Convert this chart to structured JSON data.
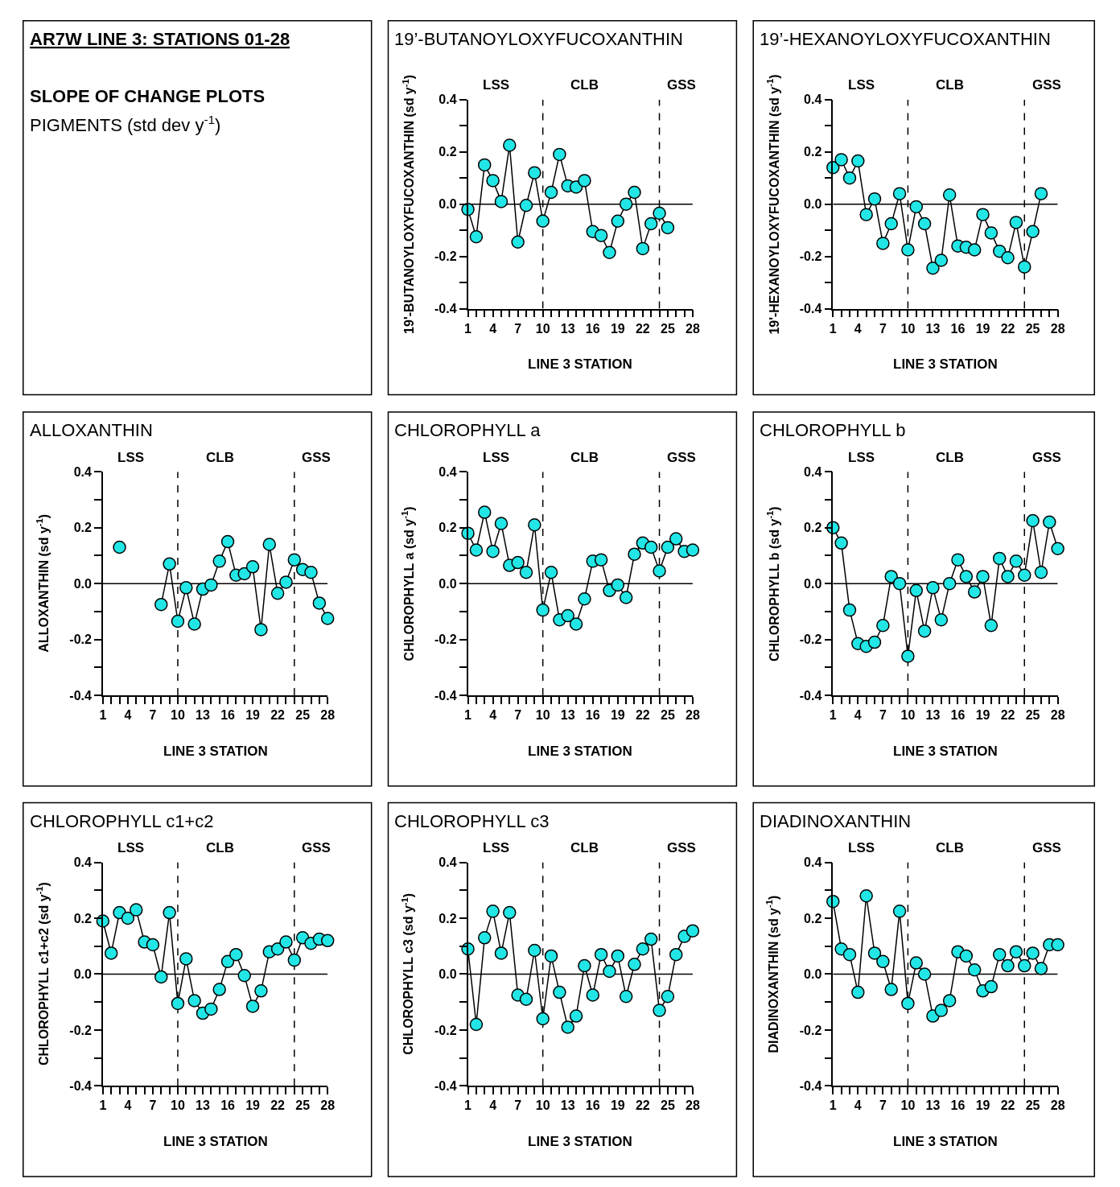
{
  "chart_data": [
    {
      "type": "other",
      "title": "AR7W LINE 3: STATIONS 01-28",
      "subtitle": "SLOPE OF CHANGE PLOTS",
      "annotations": [
        "PIGMENTS (std dev y$^{-1}$)"
      ]
    },
    {
      "type": "line",
      "title": "19’-BUTANOYLOXYFUCOXANTHIN",
      "xlabel": "LINE 3 STATION",
      "ylabel": "19'-BUTANOYLOXYFUCOXANTHIN (sd y$^{-1}$)",
      "marker": "circle",
      "line_style": "solid",
      "grid": false,
      "color": "#22e6e6",
      "x": [
        1,
        2,
        3,
        4,
        5,
        6,
        7,
        8,
        9,
        10,
        11,
        12,
        13,
        14,
        15,
        16,
        17,
        18,
        19,
        20,
        21,
        22,
        23,
        24,
        25
      ],
      "values": [
        -0.02,
        -0.125,
        0.15,
        0.09,
        0.01,
        0.225,
        -0.145,
        -0.005,
        0.12,
        -0.065,
        0.045,
        0.19,
        0.07,
        0.065,
        0.09,
        -0.105,
        -0.12,
        -0.185,
        -0.065,
        0.0,
        0.045,
        -0.17,
        -0.075,
        -0.035,
        -0.09
      ],
      "xlim": [
        1,
        28
      ],
      "ylim": [
        -0.4,
        0.4
      ],
      "xticks": [
        1,
        {
          "value": 2,
          "label": null
        },
        {
          "value": 3,
          "label": null
        },
        4,
        {
          "value": 5,
          "label": null
        },
        {
          "value": 6,
          "label": null
        },
        7,
        {
          "value": 8,
          "label": null
        },
        {
          "value": 9,
          "label": null
        },
        10,
        {
          "value": 11,
          "label": null
        },
        {
          "value": 12,
          "label": null
        },
        13,
        {
          "value": 14,
          "label": null
        },
        {
          "value": 15,
          "label": null
        },
        16,
        {
          "value": 17,
          "label": null
        },
        {
          "value": 18,
          "label": null
        },
        19,
        {
          "value": 20,
          "label": null
        },
        {
          "value": 21,
          "label": null
        },
        22,
        {
          "value": 23,
          "label": null
        },
        {
          "value": 24,
          "label": null
        },
        25,
        {
          "value": 26,
          "label": null
        },
        {
          "value": 27,
          "label": null
        },
        28
      ],
      "yticks": [
        -0.4,
        {
          "value": -0.3,
          "label": null
        },
        -0.2,
        {
          "value": -0.1,
          "label": null
        },
        {
          "value": 0,
          "label": "0.0"
        },
        {
          "value": 0.1,
          "label": null
        },
        0.2,
        {
          "value": 0.3,
          "label": null
        },
        0.4
      ],
      "ref_lines": [
        {
          "axis": "y",
          "value": 0,
          "line_style": "solid"
        },
        {
          "axis": "x",
          "value": 10,
          "line_style": "dashed"
        },
        {
          "axis": "x",
          "value": 24,
          "line_style": "dashed"
        }
      ],
      "annotations": [
        "LSS",
        "CLB",
        "GSS"
      ]
    },
    {
      "type": "line",
      "title": "19’-HEXANOYLOXYFUCOXANTHIN",
      "xlabel": "LINE 3 STATION",
      "ylabel": "19'-HEXANOYLOXYFUCOXANTHIN (sd y$^{-1}$)",
      "marker": "circle",
      "line_style": "solid",
      "grid": false,
      "color": "#22e6e6",
      "x": [
        1,
        2,
        3,
        4,
        5,
        6,
        7,
        8,
        9,
        10,
        11,
        12,
        13,
        14,
        15,
        16,
        17,
        18,
        19,
        20,
        21,
        22,
        23,
        24,
        25,
        26
      ],
      "values": [
        0.14,
        0.17,
        0.1,
        0.165,
        -0.04,
        0.02,
        -0.15,
        -0.075,
        0.04,
        -0.175,
        -0.01,
        -0.075,
        -0.245,
        -0.215,
        0.035,
        -0.16,
        -0.165,
        -0.175,
        -0.04,
        -0.11,
        -0.18,
        -0.205,
        -0.07,
        -0.24,
        -0.105,
        0.04
      ],
      "xlim": [
        1,
        28
      ],
      "ylim": [
        -0.4,
        0.4
      ],
      "xticks": [
        1,
        {
          "value": 2,
          "label": null
        },
        {
          "value": 3,
          "label": null
        },
        4,
        {
          "value": 5,
          "label": null
        },
        {
          "value": 6,
          "label": null
        },
        7,
        {
          "value": 8,
          "label": null
        },
        {
          "value": 9,
          "label": null
        },
        10,
        {
          "value": 11,
          "label": null
        },
        {
          "value": 12,
          "label": null
        },
        13,
        {
          "value": 14,
          "label": null
        },
        {
          "value": 15,
          "label": null
        },
        16,
        {
          "value": 17,
          "label": null
        },
        {
          "value": 18,
          "label": null
        },
        19,
        {
          "value": 20,
          "label": null
        },
        {
          "value": 21,
          "label": null
        },
        22,
        {
          "value": 23,
          "label": null
        },
        {
          "value": 24,
          "label": null
        },
        25,
        {
          "value": 26,
          "label": null
        },
        {
          "value": 27,
          "label": null
        },
        28
      ],
      "yticks": [
        -0.4,
        {
          "value": -0.3,
          "label": null
        },
        -0.2,
        {
          "value": -0.1,
          "label": null
        },
        {
          "value": 0,
          "label": "0.0"
        },
        {
          "value": 0.1,
          "label": null
        },
        0.2,
        {
          "value": 0.3,
          "label": null
        },
        0.4
      ],
      "ref_lines": [
        {
          "axis": "y",
          "value": 0,
          "line_style": "solid"
        },
        {
          "axis": "x",
          "value": 10,
          "line_style": "dashed"
        },
        {
          "axis": "x",
          "value": 24,
          "line_style": "dashed"
        }
      ],
      "annotations": [
        "LSS",
        "CLB",
        "GSS"
      ]
    },
    {
      "type": "line",
      "title": "ALLOXANTHIN",
      "xlabel": "LINE 3 STATION",
      "ylabel": "ALLOXANTHIN (sd y$^{-1}$)",
      "marker": "circle",
      "line_style": "solid",
      "grid": false,
      "series": [
        {
          "color": "#22e6e6",
          "x": [
            3
          ],
          "values": [
            0.13
          ]
        },
        {
          "color": "#22e6e6",
          "x": [
            8,
            9,
            10,
            11,
            12,
            13,
            14,
            15,
            16,
            17,
            18,
            19,
            20,
            21,
            22,
            23,
            24,
            25,
            26,
            27,
            28
          ],
          "values": [
            -0.075,
            0.07,
            -0.135,
            -0.015,
            -0.145,
            -0.02,
            -0.005,
            0.08,
            0.15,
            0.03,
            0.035,
            0.06,
            -0.165,
            0.14,
            -0.035,
            0.005,
            0.085,
            0.05,
            0.04,
            -0.07,
            -0.125
          ]
        }
      ],
      "xlim": [
        1,
        28
      ],
      "ylim": [
        -0.4,
        0.4
      ],
      "xticks": [
        1,
        {
          "value": 2,
          "label": null
        },
        {
          "value": 3,
          "label": null
        },
        4,
        {
          "value": 5,
          "label": null
        },
        {
          "value": 6,
          "label": null
        },
        7,
        {
          "value": 8,
          "label": null
        },
        {
          "value": 9,
          "label": null
        },
        10,
        {
          "value": 11,
          "label": null
        },
        {
          "value": 12,
          "label": null
        },
        13,
        {
          "value": 14,
          "label": null
        },
        {
          "value": 15,
          "label": null
        },
        16,
        {
          "value": 17,
          "label": null
        },
        {
          "value": 18,
          "label": null
        },
        19,
        {
          "value": 20,
          "label": null
        },
        {
          "value": 21,
          "label": null
        },
        22,
        {
          "value": 23,
          "label": null
        },
        {
          "value": 24,
          "label": null
        },
        25,
        {
          "value": 26,
          "label": null
        },
        {
          "value": 27,
          "label": null
        },
        28
      ],
      "yticks": [
        -0.4,
        {
          "value": -0.3,
          "label": null
        },
        -0.2,
        {
          "value": -0.1,
          "label": null
        },
        {
          "value": 0,
          "label": "0.0"
        },
        {
          "value": 0.1,
          "label": null
        },
        0.2,
        {
          "value": 0.3,
          "label": null
        },
        0.4
      ],
      "ref_lines": [
        {
          "axis": "y",
          "value": 0,
          "line_style": "solid"
        },
        {
          "axis": "x",
          "value": 10,
          "line_style": "dashed"
        },
        {
          "axis": "x",
          "value": 24,
          "line_style": "dashed"
        }
      ],
      "annotations": [
        "LSS",
        "CLB",
        "GSS"
      ]
    },
    {
      "type": "line",
      "title": "CHLOROPHYLL a",
      "xlabel": "LINE 3 STATION",
      "ylabel": "CHLOROPHYLL a (sd y$^{-1}$)",
      "marker": "circle",
      "line_style": "solid",
      "grid": false,
      "color": "#22e6e6",
      "x": [
        1,
        2,
        3,
        4,
        5,
        6,
        7,
        8,
        9,
        10,
        11,
        12,
        13,
        14,
        15,
        16,
        17,
        18,
        19,
        20,
        21,
        22,
        23,
        24,
        25,
        26,
        27,
        28
      ],
      "values": [
        0.18,
        0.12,
        0.255,
        0.115,
        0.215,
        0.065,
        0.075,
        0.04,
        0.21,
        -0.095,
        0.04,
        -0.13,
        -0.115,
        -0.145,
        -0.055,
        0.08,
        0.085,
        -0.025,
        -0.005,
        -0.05,
        0.105,
        0.145,
        0.13,
        0.045,
        0.13,
        0.16,
        0.115,
        0.12
      ],
      "xlim": [
        1,
        28
      ],
      "ylim": [
        -0.4,
        0.4
      ],
      "xticks": [
        1,
        {
          "value": 2,
          "label": null
        },
        {
          "value": 3,
          "label": null
        },
        4,
        {
          "value": 5,
          "label": null
        },
        {
          "value": 6,
          "label": null
        },
        7,
        {
          "value": 8,
          "label": null
        },
        {
          "value": 9,
          "label": null
        },
        10,
        {
          "value": 11,
          "label": null
        },
        {
          "value": 12,
          "label": null
        },
        13,
        {
          "value": 14,
          "label": null
        },
        {
          "value": 15,
          "label": null
        },
        16,
        {
          "value": 17,
          "label": null
        },
        {
          "value": 18,
          "label": null
        },
        19,
        {
          "value": 20,
          "label": null
        },
        {
          "value": 21,
          "label": null
        },
        22,
        {
          "value": 23,
          "label": null
        },
        {
          "value": 24,
          "label": null
        },
        25,
        {
          "value": 26,
          "label": null
        },
        {
          "value": 27,
          "label": null
        },
        28
      ],
      "yticks": [
        -0.4,
        {
          "value": -0.3,
          "label": null
        },
        -0.2,
        {
          "value": -0.1,
          "label": null
        },
        {
          "value": 0,
          "label": "0.0"
        },
        {
          "value": 0.1,
          "label": null
        },
        0.2,
        {
          "value": 0.3,
          "label": null
        },
        0.4
      ],
      "ref_lines": [
        {
          "axis": "y",
          "value": 0,
          "line_style": "solid"
        },
        {
          "axis": "x",
          "value": 10,
          "line_style": "dashed"
        },
        {
          "axis": "x",
          "value": 24,
          "line_style": "dashed"
        }
      ],
      "annotations": [
        "LSS",
        "CLB",
        "GSS"
      ]
    },
    {
      "type": "line",
      "title": "CHLOROPHYLL b",
      "xlabel": "LINE 3 STATION",
      "ylabel": "CHLOROPHYLL b (sd y$^{-1}$)",
      "marker": "circle",
      "line_style": "solid",
      "grid": false,
      "color": "#22e6e6",
      "x": [
        1,
        2,
        3,
        4,
        5,
        6,
        7,
        8,
        9,
        10,
        11,
        12,
        13,
        14,
        15,
        16,
        17,
        18,
        19,
        20,
        21,
        22,
        23,
        24,
        25,
        26,
        27,
        28
      ],
      "values": [
        0.2,
        0.145,
        -0.095,
        -0.215,
        -0.225,
        -0.21,
        -0.15,
        0.025,
        0.0,
        -0.26,
        -0.025,
        -0.17,
        -0.015,
        -0.13,
        0.0,
        0.085,
        0.025,
        -0.03,
        0.025,
        -0.15,
        0.09,
        0.025,
        0.08,
        0.03,
        0.225,
        0.04,
        0.22,
        0.125
      ],
      "xlim": [
        1,
        28
      ],
      "ylim": [
        -0.4,
        0.4
      ],
      "xticks": [
        1,
        {
          "value": 2,
          "label": null
        },
        {
          "value": 3,
          "label": null
        },
        4,
        {
          "value": 5,
          "label": null
        },
        {
          "value": 6,
          "label": null
        },
        7,
        {
          "value": 8,
          "label": null
        },
        {
          "value": 9,
          "label": null
        },
        10,
        {
          "value": 11,
          "label": null
        },
        {
          "value": 12,
          "label": null
        },
        13,
        {
          "value": 14,
          "label": null
        },
        {
          "value": 15,
          "label": null
        },
        16,
        {
          "value": 17,
          "label": null
        },
        {
          "value": 18,
          "label": null
        },
        19,
        {
          "value": 20,
          "label": null
        },
        {
          "value": 21,
          "label": null
        },
        22,
        {
          "value": 23,
          "label": null
        },
        {
          "value": 24,
          "label": null
        },
        25,
        {
          "value": 26,
          "label": null
        },
        {
          "value": 27,
          "label": null
        },
        28
      ],
      "yticks": [
        -0.4,
        {
          "value": -0.3,
          "label": null
        },
        -0.2,
        {
          "value": -0.1,
          "label": null
        },
        {
          "value": 0,
          "label": "0.0"
        },
        {
          "value": 0.1,
          "label": null
        },
        0.2,
        {
          "value": 0.3,
          "label": null
        },
        0.4
      ],
      "ref_lines": [
        {
          "axis": "y",
          "value": 0,
          "line_style": "solid"
        },
        {
          "axis": "x",
          "value": 10,
          "line_style": "dashed"
        },
        {
          "axis": "x",
          "value": 24,
          "line_style": "dashed"
        }
      ],
      "annotations": [
        "LSS",
        "CLB",
        "GSS"
      ]
    },
    {
      "type": "line",
      "title": "CHLOROPHYLL c1+c2",
      "xlabel": "LINE 3 STATION",
      "ylabel": "CHLOROPHYLL c1+c2 (sd y$^{-1}$)",
      "marker": "circle",
      "line_style": "solid",
      "grid": false,
      "color": "#22e6e6",
      "x": [
        1,
        2,
        3,
        4,
        5,
        6,
        7,
        8,
        9,
        10,
        11,
        12,
        13,
        14,
        15,
        16,
        17,
        18,
        19,
        20,
        21,
        22,
        23,
        24,
        25,
        26,
        27,
        28
      ],
      "values": [
        0.19,
        0.075,
        0.22,
        0.2,
        0.23,
        0.115,
        0.105,
        -0.01,
        0.22,
        -0.105,
        0.055,
        -0.095,
        -0.14,
        -0.125,
        -0.055,
        0.045,
        0.07,
        -0.005,
        -0.115,
        -0.06,
        0.08,
        0.09,
        0.115,
        0.05,
        0.13,
        0.11,
        0.125,
        0.12
      ],
      "xlim": [
        1,
        28
      ],
      "ylim": [
        -0.4,
        0.4
      ],
      "xticks": [
        1,
        {
          "value": 2,
          "label": null
        },
        {
          "value": 3,
          "label": null
        },
        4,
        {
          "value": 5,
          "label": null
        },
        {
          "value": 6,
          "label": null
        },
        7,
        {
          "value": 8,
          "label": null
        },
        {
          "value": 9,
          "label": null
        },
        10,
        {
          "value": 11,
          "label": null
        },
        {
          "value": 12,
          "label": null
        },
        13,
        {
          "value": 14,
          "label": null
        },
        {
          "value": 15,
          "label": null
        },
        16,
        {
          "value": 17,
          "label": null
        },
        {
          "value": 18,
          "label": null
        },
        19,
        {
          "value": 20,
          "label": null
        },
        {
          "value": 21,
          "label": null
        },
        22,
        {
          "value": 23,
          "label": null
        },
        {
          "value": 24,
          "label": null
        },
        25,
        {
          "value": 26,
          "label": null
        },
        {
          "value": 27,
          "label": null
        },
        28
      ],
      "yticks": [
        -0.4,
        {
          "value": -0.3,
          "label": null
        },
        -0.2,
        {
          "value": -0.1,
          "label": null
        },
        {
          "value": 0,
          "label": "0.0"
        },
        {
          "value": 0.1,
          "label": null
        },
        0.2,
        {
          "value": 0.3,
          "label": null
        },
        0.4
      ],
      "ref_lines": [
        {
          "axis": "y",
          "value": 0,
          "line_style": "solid"
        },
        {
          "axis": "x",
          "value": 10,
          "line_style": "dashed"
        },
        {
          "axis": "x",
          "value": 24,
          "line_style": "dashed"
        }
      ],
      "annotations": [
        "LSS",
        "CLB",
        "GSS"
      ]
    },
    {
      "type": "line",
      "title": "CHLOROPHYLL c3",
      "xlabel": "LINE 3 STATION",
      "ylabel": "CHLOROPHYLL c3 (sd y$^{-1}$)",
      "marker": "circle",
      "line_style": "solid",
      "grid": false,
      "color": "#22e6e6",
      "x": [
        1,
        2,
        3,
        4,
        5,
        6,
        7,
        8,
        9,
        10,
        11,
        12,
        13,
        14,
        15,
        16,
        17,
        18,
        19,
        20,
        21,
        22,
        23,
        24,
        25,
        26,
        27,
        28
      ],
      "values": [
        0.09,
        -0.18,
        0.13,
        0.225,
        0.075,
        0.22,
        -0.075,
        -0.09,
        0.085,
        -0.16,
        0.065,
        -0.065,
        -0.19,
        -0.15,
        0.03,
        -0.075,
        0.07,
        0.01,
        0.065,
        -0.08,
        0.035,
        0.09,
        0.125,
        -0.13,
        -0.08,
        0.07,
        0.135,
        0.155
      ],
      "xlim": [
        1,
        28
      ],
      "ylim": [
        -0.4,
        0.4
      ],
      "xticks": [
        1,
        {
          "value": 2,
          "label": null
        },
        {
          "value": 3,
          "label": null
        },
        4,
        {
          "value": 5,
          "label": null
        },
        {
          "value": 6,
          "label": null
        },
        7,
        {
          "value": 8,
          "label": null
        },
        {
          "value": 9,
          "label": null
        },
        10,
        {
          "value": 11,
          "label": null
        },
        {
          "value": 12,
          "label": null
        },
        13,
        {
          "value": 14,
          "label": null
        },
        {
          "value": 15,
          "label": null
        },
        16,
        {
          "value": 17,
          "label": null
        },
        {
          "value": 18,
          "label": null
        },
        19,
        {
          "value": 20,
          "label": null
        },
        {
          "value": 21,
          "label": null
        },
        22,
        {
          "value": 23,
          "label": null
        },
        {
          "value": 24,
          "label": null
        },
        25,
        {
          "value": 26,
          "label": null
        },
        {
          "value": 27,
          "label": null
        },
        28
      ],
      "yticks": [
        -0.4,
        {
          "value": -0.3,
          "label": null
        },
        -0.2,
        {
          "value": -0.1,
          "label": null
        },
        {
          "value": 0,
          "label": "0.0"
        },
        {
          "value": 0.1,
          "label": null
        },
        0.2,
        {
          "value": 0.3,
          "label": null
        },
        0.4
      ],
      "ref_lines": [
        {
          "axis": "y",
          "value": 0,
          "line_style": "solid"
        },
        {
          "axis": "x",
          "value": 10,
          "line_style": "dashed"
        },
        {
          "axis": "x",
          "value": 24,
          "line_style": "dashed"
        }
      ],
      "annotations": [
        "LSS",
        "CLB",
        "GSS"
      ]
    },
    {
      "type": "line",
      "title": "DIADINOXANTHIN",
      "xlabel": "LINE 3 STATION",
      "ylabel": "DIADINOXANTHIN (sd y$^{-1}$)",
      "marker": "circle",
      "line_style": "solid",
      "grid": false,
      "color": "#22e6e6",
      "x": [
        1,
        2,
        3,
        4,
        5,
        6,
        7,
        8,
        9,
        10,
        11,
        12,
        13,
        14,
        15,
        16,
        17,
        18,
        19,
        20,
        21,
        22,
        23,
        24,
        25,
        26,
        27,
        28
      ],
      "values": [
        0.26,
        0.09,
        0.07,
        -0.065,
        0.28,
        0.075,
        0.045,
        -0.055,
        0.225,
        -0.105,
        0.04,
        0.0,
        -0.15,
        -0.13,
        -0.095,
        0.08,
        0.065,
        0.015,
        -0.06,
        -0.045,
        0.07,
        0.03,
        0.08,
        0.03,
        0.075,
        0.02,
        0.105,
        0.105
      ],
      "xlim": [
        1,
        28
      ],
      "ylim": [
        -0.4,
        0.4
      ],
      "xticks": [
        1,
        {
          "value": 2,
          "label": null
        },
        {
          "value": 3,
          "label": null
        },
        4,
        {
          "value": 5,
          "label": null
        },
        {
          "value": 6,
          "label": null
        },
        7,
        {
          "value": 8,
          "label": null
        },
        {
          "value": 9,
          "label": null
        },
        10,
        {
          "value": 11,
          "label": null
        },
        {
          "value": 12,
          "label": null
        },
        13,
        {
          "value": 14,
          "label": null
        },
        {
          "value": 15,
          "label": null
        },
        16,
        {
          "value": 17,
          "label": null
        },
        {
          "value": 18,
          "label": null
        },
        19,
        {
          "value": 20,
          "label": null
        },
        {
          "value": 21,
          "label": null
        },
        22,
        {
          "value": 23,
          "label": null
        },
        {
          "value": 24,
          "label": null
        },
        25,
        {
          "value": 26,
          "label": null
        },
        {
          "value": 27,
          "label": null
        },
        28
      ],
      "yticks": [
        -0.4,
        {
          "value": -0.3,
          "label": null
        },
        -0.2,
        {
          "value": -0.1,
          "label": null
        },
        {
          "value": 0,
          "label": "0.0"
        },
        {
          "value": 0.1,
          "label": null
        },
        0.2,
        {
          "value": 0.3,
          "label": null
        },
        0.4
      ],
      "ref_lines": [
        {
          "axis": "y",
          "value": 0,
          "line_style": "solid"
        },
        {
          "axis": "x",
          "value": 10,
          "line_style": "dashed"
        },
        {
          "axis": "x",
          "value": 24,
          "line_style": "dashed"
        }
      ],
      "annotations": [
        "LSS",
        "CLB",
        "GSS"
      ]
    }
  ]
}
